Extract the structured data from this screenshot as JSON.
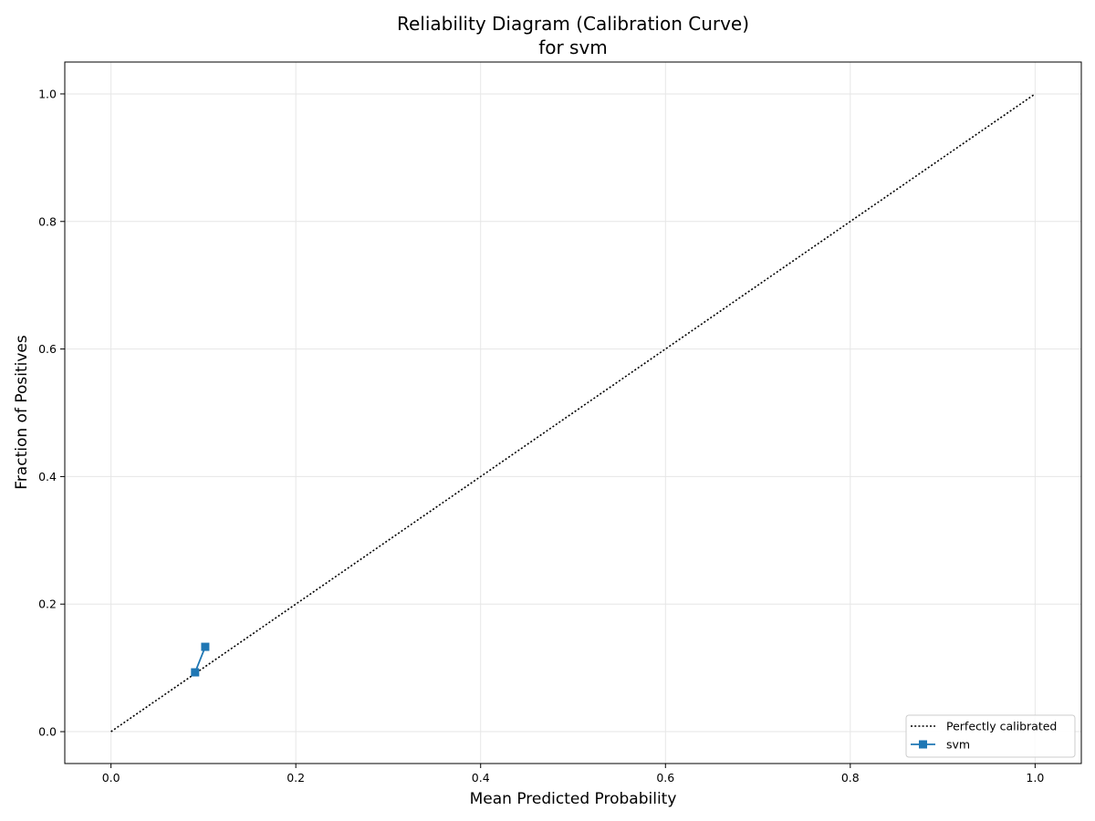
{
  "chart_data": {
    "type": "line",
    "title": "Reliability Diagram (Calibration Curve)",
    "subtitle": "for svm",
    "xlabel": "Mean Predicted Probability",
    "ylabel": "Fraction of Positives",
    "xlim": [
      -0.05,
      1.05
    ],
    "ylim": [
      -0.05,
      1.05
    ],
    "xticks": [
      0.0,
      0.2,
      0.4,
      0.6,
      0.8,
      1.0
    ],
    "yticks": [
      0.0,
      0.2,
      0.4,
      0.6,
      0.8,
      1.0
    ],
    "xtick_labels": [
      "0.0",
      "0.2",
      "0.4",
      "0.6",
      "0.8",
      "1.0"
    ],
    "ytick_labels": [
      "0.0",
      "0.2",
      "0.4",
      "0.6",
      "0.8",
      "1.0"
    ],
    "grid": true,
    "legend_position": "bottom-right",
    "series": [
      {
        "name": "Perfectly calibrated",
        "style": "dotted",
        "color": "#000000",
        "marker": "none",
        "x": [
          0.0,
          1.0
        ],
        "y": [
          0.0,
          1.0
        ]
      },
      {
        "name": "svm",
        "style": "solid",
        "color": "#1f77b4",
        "marker": "square",
        "x": [
          0.091,
          0.102
        ],
        "y": [
          0.093,
          0.133
        ]
      }
    ]
  }
}
